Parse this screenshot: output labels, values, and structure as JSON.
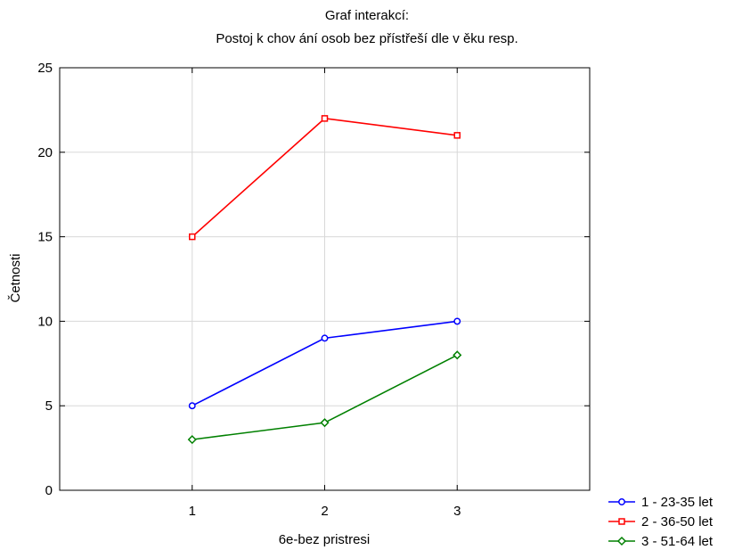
{
  "chart_data": {
    "type": "line",
    "title": "Graf  interakcí:",
    "subtitle": "Postoj k chov ání osob bez přístřeší dle v ěku resp.",
    "xlabel": "6e-bez pristresi",
    "ylabel": "Četnosti",
    "categories": [
      "1",
      "2",
      "3"
    ],
    "x": [
      1,
      2,
      3
    ],
    "xlim": [
      0,
      4
    ],
    "ylim": [
      0,
      25
    ],
    "yticks": [
      0,
      5,
      10,
      15,
      20,
      25
    ],
    "grid": true,
    "legend_position": "bottom-right",
    "series": [
      {
        "name": "1 - 23-35 let",
        "values": [
          5,
          9,
          10
        ],
        "color": "#0000ff",
        "marker": "circle"
      },
      {
        "name": "2 - 36-50 let",
        "values": [
          15,
          22,
          21
        ],
        "color": "#ff0000",
        "marker": "square"
      },
      {
        "name": "3 - 51-64 let",
        "values": [
          3,
          4,
          8
        ],
        "color": "#008000",
        "marker": "diamond"
      }
    ]
  }
}
